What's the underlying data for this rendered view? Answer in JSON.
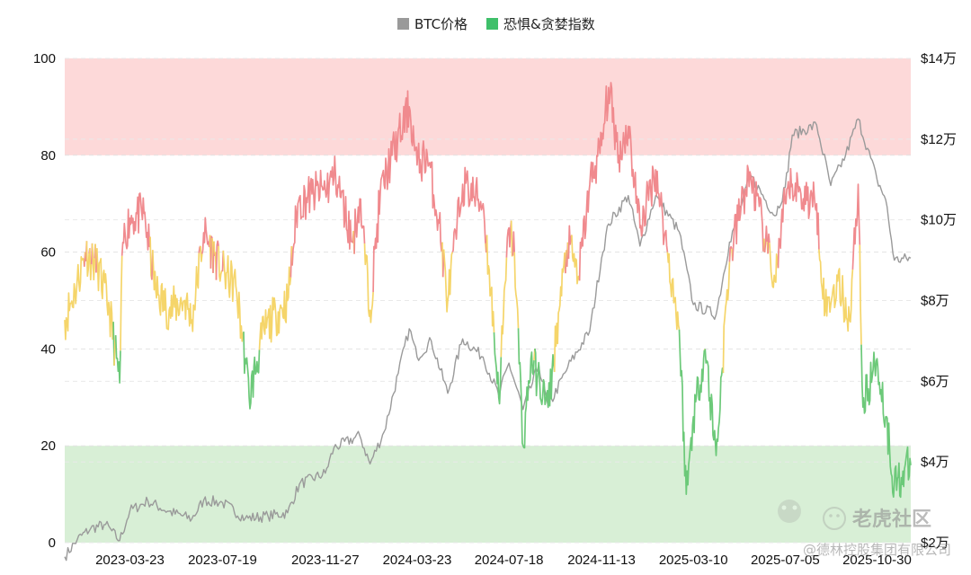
{
  "chart_data": {
    "type": "line",
    "legend": {
      "placement": "top-center",
      "items": [
        {
          "label": "BTC价格",
          "color": "#9a9a9a"
        },
        {
          "label": "恐惧&贪婪指数",
          "color": "#3fc06a"
        }
      ]
    },
    "y_left": {
      "range": [
        0,
        100
      ],
      "ticks": [
        {
          "value": 0,
          "label": "0"
        },
        {
          "value": 20,
          "label": "20"
        },
        {
          "value": 40,
          "label": "40"
        },
        {
          "value": 60,
          "label": "60"
        },
        {
          "value": 80,
          "label": "80"
        },
        {
          "value": 100,
          "label": "100"
        }
      ]
    },
    "y_right": {
      "range": [
        20000,
        140000
      ],
      "ticks": [
        {
          "value": 20000,
          "label": "$2万"
        },
        {
          "value": 40000,
          "label": "$4万"
        },
        {
          "value": 60000,
          "label": "$6万"
        },
        {
          "value": 80000,
          "label": "$8万"
        },
        {
          "value": 100000,
          "label": "$10万"
        },
        {
          "value": 120000,
          "label": "$12万"
        },
        {
          "value": 140000,
          "label": "$14万"
        }
      ]
    },
    "x_axis": {
      "range": [
        "2022-12-30",
        "2025-12-12"
      ],
      "tick_labels": [
        "2023-03-23",
        "2023-07-19",
        "2023-11-27",
        "2024-03-23",
        "2024-07-18",
        "2024-11-13",
        "2025-03-10",
        "2025-07-05",
        "2025-10-30"
      ]
    },
    "zones": [
      {
        "from": 80,
        "to": 100,
        "color": "#fdd9d9"
      },
      {
        "from": 0,
        "to": 20,
        "color": "#d8efd6"
      }
    ],
    "fear_greed_color_bands": [
      {
        "min": 60,
        "max": 100,
        "color": "#f08a8e"
      },
      {
        "min": 40,
        "max": 60,
        "color": "#f5d56a"
      },
      {
        "min": 0,
        "max": 40,
        "color": "#6cc979"
      }
    ],
    "fear_greed_color_bands_note_hidden": true,
    "series": [
      {
        "name": "BTC价格",
        "axis": "right",
        "color": "#9a9a9a",
        "points": [
          [
            "2022-12-30",
            16500
          ],
          [
            "2023-01-15",
            20800
          ],
          [
            "2023-02-01",
            23500
          ],
          [
            "2023-02-20",
            24500
          ],
          [
            "2023-03-10",
            20500
          ],
          [
            "2023-03-23",
            27900
          ],
          [
            "2023-04-15",
            30300
          ],
          [
            "2023-05-10",
            27800
          ],
          [
            "2023-06-10",
            25900
          ],
          [
            "2023-06-25",
            30500
          ],
          [
            "2023-07-19",
            29900
          ],
          [
            "2023-08-17",
            26000
          ],
          [
            "2023-09-15",
            26600
          ],
          [
            "2023-10-10",
            27400
          ],
          [
            "2023-10-25",
            34500
          ],
          [
            "2023-11-27",
            37200
          ],
          [
            "2023-12-08",
            43500
          ],
          [
            "2024-01-10",
            46500
          ],
          [
            "2024-01-23",
            39500
          ],
          [
            "2024-02-10",
            47500
          ],
          [
            "2024-02-28",
            62000
          ],
          [
            "2024-03-13",
            73000
          ],
          [
            "2024-03-23",
            66000
          ],
          [
            "2024-04-10",
            70000
          ],
          [
            "2024-05-01",
            57000
          ],
          [
            "2024-05-20",
            70500
          ],
          [
            "2024-06-15",
            66000
          ],
          [
            "2024-07-05",
            56500
          ],
          [
            "2024-07-18",
            64500
          ],
          [
            "2024-08-05",
            53000
          ],
          [
            "2024-08-25",
            64000
          ],
          [
            "2024-09-06",
            53500
          ],
          [
            "2024-10-01",
            63500
          ],
          [
            "2024-10-29",
            72500
          ],
          [
            "2024-11-13",
            90500
          ],
          [
            "2024-11-22",
            99000
          ],
          [
            "2024-12-17",
            106000
          ],
          [
            "2025-01-01",
            93500
          ],
          [
            "2025-01-21",
            106000
          ],
          [
            "2025-02-20",
            97000
          ],
          [
            "2025-03-10",
            79000
          ],
          [
            "2025-04-08",
            76500
          ],
          [
            "2025-04-25",
            94500
          ],
          [
            "2025-05-22",
            111000
          ],
          [
            "2025-06-22",
            101000
          ],
          [
            "2025-07-05",
            108000
          ],
          [
            "2025-07-14",
            121000
          ],
          [
            "2025-08-14",
            123500
          ],
          [
            "2025-09-01",
            108500
          ],
          [
            "2025-09-20",
            116000
          ],
          [
            "2025-10-06",
            125000
          ],
          [
            "2025-10-30",
            110000
          ],
          [
            "2025-11-10",
            105000
          ],
          [
            "2025-11-21",
            90000
          ],
          [
            "2025-12-12",
            90500
          ]
        ]
      },
      {
        "name": "恐惧&贪婪指数",
        "axis": "left",
        "points": [
          [
            "2022-12-30",
            46
          ],
          [
            "2023-01-12",
            52
          ],
          [
            "2023-01-25",
            60
          ],
          [
            "2023-02-10",
            57
          ],
          [
            "2023-02-25",
            48
          ],
          [
            "2023-03-10",
            33
          ],
          [
            "2023-03-14",
            62
          ],
          [
            "2023-03-23",
            67
          ],
          [
            "2023-04-10",
            68
          ],
          [
            "2023-04-25",
            52
          ],
          [
            "2023-05-12",
            48
          ],
          [
            "2023-06-01",
            50
          ],
          [
            "2023-06-10",
            46
          ],
          [
            "2023-06-25",
            64
          ],
          [
            "2023-07-19",
            56
          ],
          [
            "2023-08-05",
            53
          ],
          [
            "2023-08-17",
            38
          ],
          [
            "2023-08-22",
            30
          ],
          [
            "2023-09-10",
            44
          ],
          [
            "2023-09-25",
            47
          ],
          [
            "2023-10-10",
            50
          ],
          [
            "2023-10-23",
            70
          ],
          [
            "2023-11-10",
            72
          ],
          [
            "2023-11-27",
            73
          ],
          [
            "2023-12-10",
            76
          ],
          [
            "2024-01-01",
            62
          ],
          [
            "2024-01-10",
            71
          ],
          [
            "2024-01-23",
            48
          ],
          [
            "2024-02-05",
            72
          ],
          [
            "2024-02-20",
            80
          ],
          [
            "2024-03-05",
            86
          ],
          [
            "2024-03-13",
            90
          ],
          [
            "2024-03-23",
            78
          ],
          [
            "2024-04-05",
            80
          ],
          [
            "2024-04-20",
            66
          ],
          [
            "2024-05-01",
            50
          ],
          [
            "2024-05-20",
            74
          ],
          [
            "2024-06-15",
            70
          ],
          [
            "2024-06-25",
            52
          ],
          [
            "2024-07-05",
            30
          ],
          [
            "2024-07-18",
            65
          ],
          [
            "2024-07-25",
            60
          ],
          [
            "2024-08-05",
            20
          ],
          [
            "2024-08-15",
            38
          ],
          [
            "2024-09-06",
            28
          ],
          [
            "2024-09-20",
            48
          ],
          [
            "2024-10-01",
            62
          ],
          [
            "2024-10-15",
            55
          ],
          [
            "2024-10-29",
            74
          ],
          [
            "2024-11-13",
            82
          ],
          [
            "2024-11-22",
            94
          ],
          [
            "2024-12-05",
            80
          ],
          [
            "2024-12-17",
            86
          ],
          [
            "2025-01-01",
            65
          ],
          [
            "2025-01-21",
            77
          ],
          [
            "2025-02-05",
            60
          ],
          [
            "2025-02-20",
            44
          ],
          [
            "2025-03-01",
            10
          ],
          [
            "2025-03-10",
            26
          ],
          [
            "2025-03-25",
            40
          ],
          [
            "2025-04-08",
            18
          ],
          [
            "2025-04-25",
            58
          ],
          [
            "2025-05-10",
            70
          ],
          [
            "2025-05-22",
            76
          ],
          [
            "2025-06-10",
            62
          ],
          [
            "2025-06-22",
            54
          ],
          [
            "2025-07-05",
            70
          ],
          [
            "2025-07-14",
            74
          ],
          [
            "2025-07-25",
            72
          ],
          [
            "2025-08-14",
            70
          ],
          [
            "2025-08-25",
            48
          ],
          [
            "2025-09-10",
            54
          ],
          [
            "2025-09-25",
            46
          ],
          [
            "2025-10-06",
            74
          ],
          [
            "2025-10-12",
            28
          ],
          [
            "2025-10-30",
            38
          ],
          [
            "2025-11-10",
            26
          ],
          [
            "2025-11-21",
            12
          ],
          [
            "2025-12-12",
            16
          ]
        ]
      }
    ]
  },
  "watermark": {
    "brand_text": "老虎社区",
    "credit_text": "@德林控股集团有限公司"
  }
}
